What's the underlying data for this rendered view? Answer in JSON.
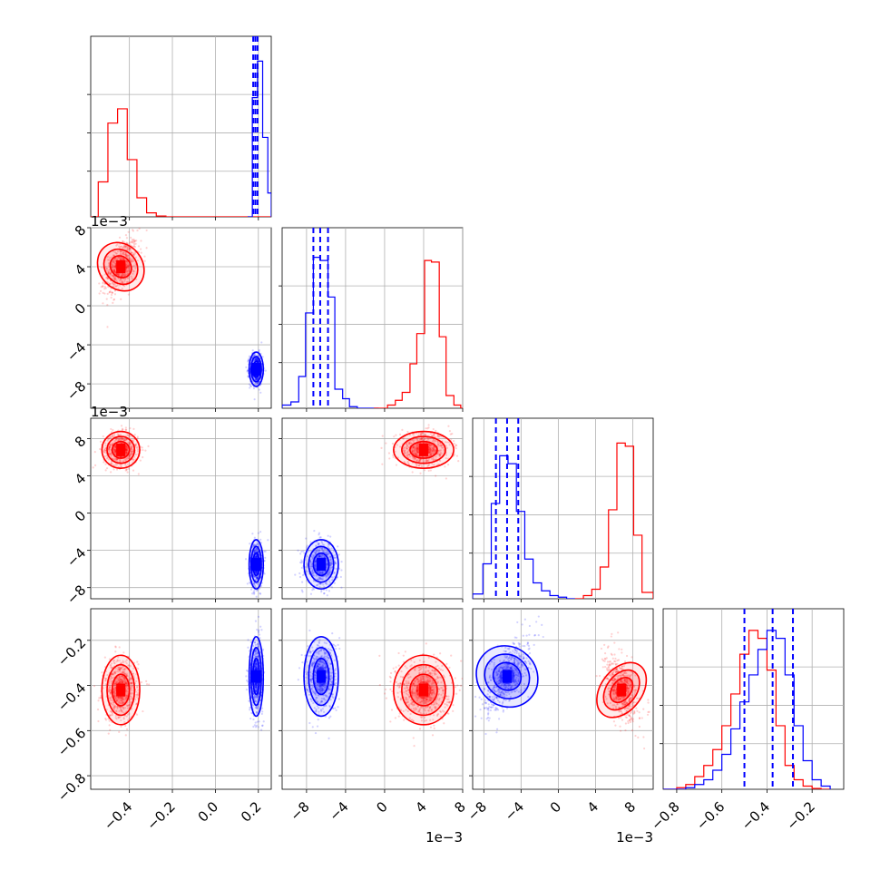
{
  "chart_data": {
    "type": "corner",
    "colors": {
      "red": "#ff0000",
      "blue": "#0000ff"
    },
    "variables": [
      {
        "range": [
          -0.58,
          0.26
        ],
        "ticks": [
          -0.4,
          -0.2,
          0.0,
          0.2
        ],
        "tick_labels": [
          "−0.4",
          "−0.2",
          "0.0",
          "0.2"
        ],
        "offset_label": ""
      },
      {
        "range": [
          -0.0105,
          0.008
        ],
        "ticks": [
          -0.008,
          -0.004,
          0,
          0.004,
          0.008
        ],
        "tick_labels": [
          "−8",
          "−4",
          "0",
          "4",
          "8"
        ],
        "offset_label": "1e−3"
      },
      {
        "range": [
          -0.0092,
          0.0102
        ],
        "ticks": [
          -0.008,
          -0.004,
          0,
          0.004,
          0.008
        ],
        "tick_labels": [
          "−8",
          "−4",
          "0",
          "4",
          "8"
        ],
        "offset_label": "1e−3"
      },
      {
        "range": [
          -0.86,
          -0.06
        ],
        "ticks": [
          -0.8,
          -0.6,
          -0.4,
          -0.2
        ],
        "tick_labels": [
          "−0.8",
          "−0.6",
          "−0.4",
          "−0.2"
        ],
        "offset_label": ""
      }
    ],
    "series": [
      {
        "color": "red",
        "means": [
          -0.44,
          0.004,
          0.0068,
          -0.42
        ],
        "sds": [
          0.04,
          0.0014,
          0.0009,
          0.07
        ],
        "hist_centers": [
          -0.545,
          -0.5,
          -0.455,
          -0.41,
          -0.365,
          -0.32,
          -0.275
        ],
        "hist_values": [
          0.22,
          0.59,
          0.68,
          0.36,
          0.12,
          0.025,
          0.005
        ],
        "quantiles": [],
        "pairs": [
          {
            "i": 1,
            "j": 0,
            "mx": -0.44,
            "my": 0.004,
            "sx": 0.04,
            "sy": 0.0014,
            "rho": 0.5
          },
          {
            "i": 2,
            "j": 0,
            "mx": -0.44,
            "my": 0.0068,
            "sx": 0.04,
            "sy": 0.0009,
            "rho": 0.0
          },
          {
            "i": 2,
            "j": 1,
            "mx": 0.004,
            "my": 0.0068,
            "sx": 0.0014,
            "sy": 0.0009,
            "rho": 0.0
          },
          {
            "i": 3,
            "j": 0,
            "mx": -0.44,
            "my": -0.42,
            "sx": 0.04,
            "sy": 0.07,
            "rho": 0.0
          },
          {
            "i": 3,
            "j": 1,
            "mx": 0.004,
            "my": -0.42,
            "sx": 0.0014,
            "sy": 0.07,
            "rho": 0.0
          },
          {
            "i": 3,
            "j": 2,
            "mx": 0.0068,
            "my": -0.42,
            "sx": 0.0009,
            "sy": 0.07,
            "rho": -0.4
          }
        ]
      },
      {
        "color": "blue",
        "means": [
          0.19,
          -0.0065,
          -0.0055,
          -0.36
        ],
        "sds": [
          0.015,
          0.0008,
          0.0012,
          0.08
        ],
        "hist_centers": [
          0.172,
          0.196,
          0.22,
          0.244
        ],
        "hist_values": [
          0.75,
          0.98,
          0.5,
          0.15
        ],
        "quantiles": [
          [
            0.176,
            0.186,
            0.196
          ],
          [
            -0.0073,
            -0.0066,
            -0.0058
          ],
          [
            -0.0067,
            -0.0055,
            -0.0043
          ],
          [
            -0.5,
            -0.375,
            -0.285
          ]
        ],
        "pairs": [
          {
            "i": 1,
            "j": 0,
            "mx": 0.19,
            "my": -0.0065,
            "sx": 0.015,
            "sy": 0.0008,
            "rho": 0.0
          },
          {
            "i": 2,
            "j": 0,
            "mx": 0.19,
            "my": -0.0055,
            "sx": 0.015,
            "sy": 0.0012,
            "rho": 0.0
          },
          {
            "i": 2,
            "j": 1,
            "mx": -0.0065,
            "my": -0.0055,
            "sx": 0.0008,
            "sy": 0.0012,
            "rho": 0.0
          },
          {
            "i": 3,
            "j": 0,
            "mx": 0.19,
            "my": -0.36,
            "sx": 0.015,
            "sy": 0.08,
            "rho": 0.0
          },
          {
            "i": 3,
            "j": 1,
            "mx": -0.0065,
            "my": -0.36,
            "sx": 0.0008,
            "sy": 0.08,
            "rho": 0.0
          },
          {
            "i": 3,
            "j": 2,
            "mx": -0.0055,
            "my": -0.36,
            "sx": 0.0012,
            "sy": 0.08,
            "rho": 0.65
          }
        ]
      }
    ],
    "marginals": [
      {
        "series": [
          {
            "color": "red",
            "edges": [
              -0.58,
              -0.545,
              -0.5,
              -0.455,
              -0.41,
              -0.365,
              -0.32,
              -0.275,
              -0.23,
              0.26
            ],
            "values": [
              0.0,
              0.22,
              0.59,
              0.68,
              0.36,
              0.12,
              0.025,
              0.005,
              0.0
            ]
          },
          {
            "color": "blue",
            "edges": [
              0.15,
              0.172,
              0.196,
              0.22,
              0.244,
              0.26
            ],
            "values": [
              0.0,
              0.75,
              0.98,
              0.5,
              0.15
            ]
          }
        ]
      },
      {
        "series": [
          {
            "color": "blue",
            "edges": [
              -0.0105,
              -0.0096,
              -0.0088,
              -0.0081,
              -0.0073,
              -0.0066,
              -0.0058,
              -0.0051,
              -0.0043,
              -0.0036,
              -0.0028,
              -0.0021,
              -0.0013,
              -0.0006
            ],
            "values": [
              0.02,
              0.04,
              0.2,
              0.6,
              0.95,
              0.93,
              0.7,
              0.12,
              0.06,
              0.01,
              0.0,
              0.0,
              0.0
            ]
          },
          {
            "color": "red",
            "edges": [
              -0.0011,
              0.0003,
              0.0011,
              0.0018,
              0.0026,
              0.0033,
              0.0041,
              0.0048,
              0.0056,
              0.0063,
              0.0071,
              0.0078,
              0.008
            ],
            "values": [
              0.0,
              0.02,
              0.05,
              0.1,
              0.28,
              0.47,
              0.93,
              0.92,
              0.45,
              0.08,
              0.02,
              0.0
            ]
          }
        ]
      },
      {
        "series": [
          {
            "color": "blue",
            "edges": [
              -0.0092,
              -0.0081,
              -0.0072,
              -0.0063,
              -0.0054,
              -0.0045,
              -0.0036,
              -0.0027,
              -0.0018,
              -0.0009,
              0.0,
              0.0009,
              0.0018
            ],
            "values": [
              0.03,
              0.22,
              0.6,
              0.9,
              0.85,
              0.55,
              0.25,
              0.1,
              0.05,
              0.02,
              0.01,
              0.0
            ]
          },
          {
            "color": "red",
            "edges": [
              0.0018,
              0.0027,
              0.0036,
              0.0045,
              0.0054,
              0.0063,
              0.0072,
              0.0081,
              0.009,
              0.0102
            ],
            "values": [
              0.0,
              0.02,
              0.06,
              0.2,
              0.56,
              0.98,
              0.96,
              0.4,
              0.04
            ]
          }
        ]
      },
      {
        "series": [
          {
            "color": "red",
            "edges": [
              -0.86,
              -0.8,
              -0.76,
              -0.72,
              -0.68,
              -0.64,
              -0.6,
              -0.56,
              -0.52,
              -0.48,
              -0.44,
              -0.4,
              -0.36,
              -0.32,
              -0.28,
              -0.24,
              -0.2,
              -0.16,
              -0.12
            ],
            "values": [
              0.0,
              0.01,
              0.03,
              0.08,
              0.15,
              0.25,
              0.4,
              0.6,
              0.85,
              1.0,
              0.95,
              0.75,
              0.4,
              0.15,
              0.06,
              0.02,
              0.005,
              0.0
            ]
          },
          {
            "color": "blue",
            "edges": [
              -0.86,
              -0.76,
              -0.72,
              -0.68,
              -0.64,
              -0.6,
              -0.56,
              -0.52,
              -0.48,
              -0.44,
              -0.4,
              -0.36,
              -0.32,
              -0.28,
              -0.24,
              -0.2,
              -0.16,
              -0.12
            ],
            "values": [
              0.0,
              0.01,
              0.03,
              0.06,
              0.12,
              0.22,
              0.38,
              0.55,
              0.72,
              0.88,
              1.0,
              0.95,
              0.72,
              0.4,
              0.18,
              0.06,
              0.02
            ]
          }
        ]
      }
    ],
    "grid": true,
    "legend": "none"
  }
}
